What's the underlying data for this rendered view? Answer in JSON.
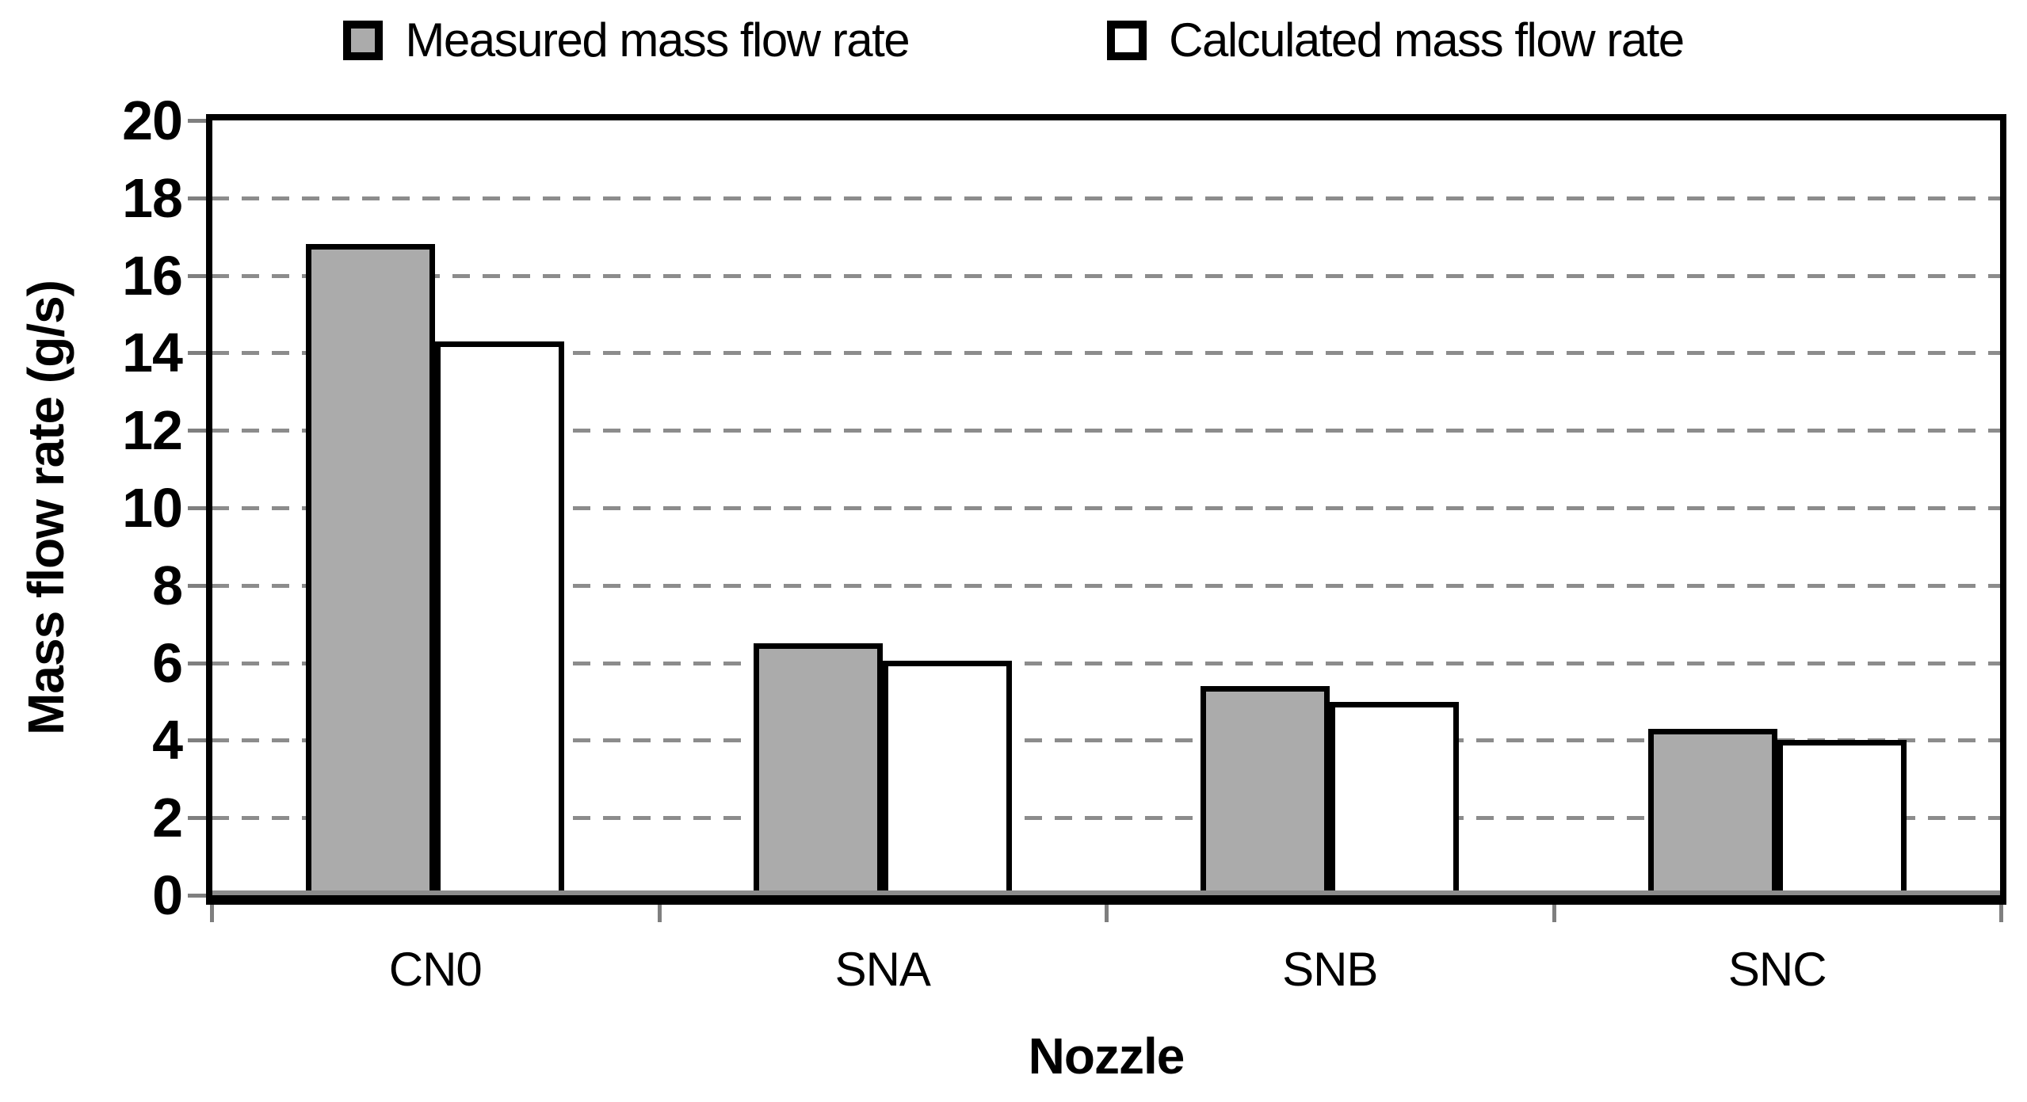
{
  "figure": {
    "background": "#ffffff",
    "text_color": "#000000"
  },
  "chart_data": {
    "type": "bar",
    "title": "",
    "categories": [
      "CN0",
      "SNA",
      "SNB",
      "SNC"
    ],
    "series": [
      {
        "name": "Measured mass flow rate",
        "color": "#ababab",
        "values": [
          16.8,
          6.5,
          5.4,
          4.3
        ]
      },
      {
        "name": "Calculated mass flow rate",
        "color": "#ffffff",
        "values": [
          14.3,
          6.05,
          5.0,
          4.0
        ]
      }
    ],
    "xlabel": "Nozzle",
    "ylabel": "Mass flow rate (g/s)",
    "ylim": [
      0,
      20
    ],
    "yticks": [
      0,
      2,
      4,
      6,
      8,
      10,
      12,
      14,
      16,
      18,
      20
    ],
    "grid": "horizontal-dashed",
    "gridline_color": "#8c8c8c",
    "axis_color": "#000000",
    "bar_border_color": "#000000",
    "legend_position": "top"
  }
}
